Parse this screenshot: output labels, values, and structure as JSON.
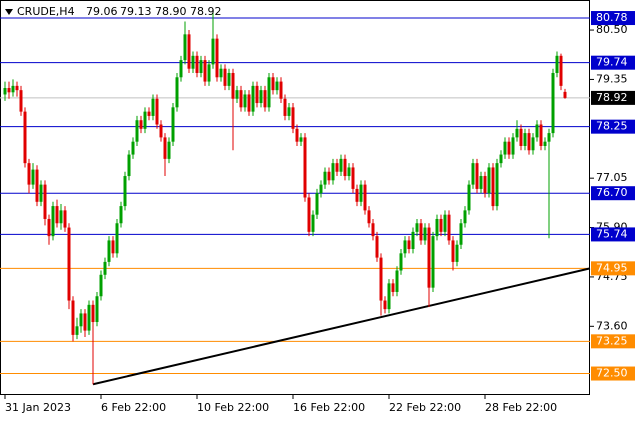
{
  "chart_data": {
    "type": "candlestick",
    "symbol": "CRUDE,H4",
    "quote": [
      "79.06",
      "79.13",
      "78.90",
      "78.92"
    ],
    "ylim": [
      72.0,
      81.2
    ],
    "yticks": [
      {
        "value": 80.5,
        "label": "80.50"
      },
      {
        "value": 79.35,
        "label": "79.35"
      },
      {
        "value": 77.05,
        "label": "77.05"
      },
      {
        "value": 75.9,
        "label": "75.90"
      },
      {
        "value": 74.75,
        "label": "74.75"
      },
      {
        "value": 73.6,
        "label": "73.60"
      }
    ],
    "up_color": "#00a000",
    "down_color": "#e00000",
    "levels": [
      {
        "value": 80.78,
        "label": "80.78",
        "color": "#0000cc"
      },
      {
        "value": 79.74,
        "label": "79.74",
        "color": "#0000cc"
      },
      {
        "value": 78.25,
        "label": "78.25",
        "color": "#0000cc"
      },
      {
        "value": 76.7,
        "label": "76.70",
        "color": "#0000cc"
      },
      {
        "value": 75.74,
        "label": "75.74",
        "color": "#0000cc"
      },
      {
        "value": 74.95,
        "label": "74.95",
        "color": "#ff8c00"
      },
      {
        "value": 73.25,
        "label": "73.25",
        "color": "#ff8c00"
      },
      {
        "value": 72.5,
        "label": "72.50",
        "color": "#ff8c00"
      }
    ],
    "price_line": {
      "value": 78.92,
      "label": "78.92"
    },
    "trendline": [
      72.25,
      74.95
    ],
    "categories": [
      "31 Jan 2023",
      null,
      null,
      null,
      null,
      null,
      null,
      null,
      null,
      null,
      null,
      null,
      null,
      null,
      null,
      null,
      null,
      null,
      null,
      null,
      null,
      null,
      null,
      null,
      "6 Feb 22:00",
      null,
      null,
      null,
      null,
      null,
      null,
      null,
      null,
      null,
      null,
      null,
      null,
      null,
      null,
      null,
      null,
      null,
      null,
      null,
      null,
      null,
      null,
      null,
      "10 Feb 22:00",
      null,
      null,
      null,
      null,
      null,
      null,
      null,
      null,
      null,
      null,
      null,
      null,
      null,
      null,
      null,
      null,
      null,
      null,
      null,
      null,
      null,
      null,
      null,
      "16 Feb 22:00",
      null,
      null,
      null,
      null,
      null,
      null,
      null,
      null,
      null,
      null,
      null,
      null,
      null,
      null,
      null,
      null,
      null,
      null,
      null,
      null,
      null,
      null,
      null,
      "22 Feb 22:00",
      null,
      null,
      null,
      null,
      null,
      null,
      null,
      null,
      null,
      null,
      null,
      null,
      null,
      null,
      null,
      null,
      null,
      null,
      null,
      null,
      null,
      null,
      null,
      "28 Feb 22:00",
      null,
      null,
      null,
      null,
      null,
      null,
      null,
      null,
      null,
      null,
      null,
      null,
      null,
      null,
      null,
      null,
      null,
      null,
      null,
      null
    ],
    "ohlc": [
      [
        79.0,
        79.3,
        78.85,
        79.15
      ],
      [
        79.15,
        79.3,
        78.9,
        79.05
      ],
      [
        79.05,
        79.35,
        78.95,
        79.2
      ],
      [
        79.2,
        79.3,
        78.95,
        79.1
      ],
      [
        79.1,
        79.2,
        78.5,
        78.6
      ],
      [
        78.6,
        78.7,
        77.3,
        77.4
      ],
      [
        77.4,
        77.5,
        76.7,
        76.9
      ],
      [
        76.9,
        77.4,
        76.8,
        77.25
      ],
      [
        77.25,
        77.35,
        76.4,
        76.5
      ],
      [
        76.5,
        77.0,
        76.4,
        76.9
      ],
      [
        76.9,
        77.0,
        75.95,
        76.1
      ],
      [
        76.1,
        76.2,
        75.5,
        75.7
      ],
      [
        75.7,
        76.5,
        75.6,
        76.4
      ],
      [
        76.4,
        76.55,
        75.9,
        76.0
      ],
      [
        76.0,
        76.45,
        75.85,
        76.3
      ],
      [
        76.3,
        76.4,
        75.8,
        75.9
      ],
      [
        75.9,
        76.0,
        74.0,
        74.2
      ],
      [
        74.2,
        74.3,
        73.25,
        73.4
      ],
      [
        73.4,
        73.8,
        73.3,
        73.6
      ],
      [
        73.6,
        74.0,
        73.45,
        73.9
      ],
      [
        73.9,
        74.0,
        73.35,
        73.5
      ],
      [
        73.5,
        74.2,
        73.4,
        74.1
      ],
      [
        74.1,
        74.2,
        72.25,
        73.7
      ],
      [
        73.7,
        74.4,
        73.6,
        74.3
      ],
      [
        74.3,
        74.9,
        74.2,
        74.8
      ],
      [
        74.8,
        75.2,
        74.7,
        75.1
      ],
      [
        75.1,
        75.7,
        75.0,
        75.6
      ],
      [
        75.6,
        75.7,
        75.2,
        75.3
      ],
      [
        75.3,
        76.1,
        75.2,
        76.0
      ],
      [
        76.0,
        76.5,
        75.9,
        76.4
      ],
      [
        76.4,
        77.2,
        76.3,
        77.1
      ],
      [
        77.1,
        77.7,
        77.0,
        77.6
      ],
      [
        77.6,
        78.0,
        77.5,
        77.9
      ],
      [
        77.9,
        78.5,
        77.8,
        78.4
      ],
      [
        78.4,
        78.5,
        78.1,
        78.2
      ],
      [
        78.2,
        78.7,
        78.1,
        78.6
      ],
      [
        78.6,
        78.7,
        78.4,
        78.5
      ],
      [
        78.5,
        79.0,
        78.4,
        78.9
      ],
      [
        78.9,
        79.0,
        78.2,
        78.3
      ],
      [
        78.3,
        78.4,
        77.9,
        78.0
      ],
      [
        78.0,
        78.1,
        77.1,
        77.5
      ],
      [
        77.5,
        78.0,
        77.4,
        77.9
      ],
      [
        77.9,
        78.8,
        77.8,
        78.7
      ],
      [
        78.7,
        79.5,
        78.6,
        79.4
      ],
      [
        79.4,
        79.9,
        79.3,
        79.8
      ],
      [
        79.8,
        80.7,
        79.7,
        80.4
      ],
      [
        80.4,
        80.5,
        79.5,
        79.6
      ],
      [
        79.6,
        80.0,
        79.5,
        79.9
      ],
      [
        79.9,
        80.0,
        79.4,
        79.5
      ],
      [
        79.5,
        79.9,
        79.4,
        79.8
      ],
      [
        79.8,
        79.9,
        79.2,
        79.3
      ],
      [
        79.3,
        79.8,
        79.2,
        79.7
      ],
      [
        79.7,
        80.95,
        79.6,
        80.3
      ],
      [
        80.3,
        80.4,
        79.3,
        79.4
      ],
      [
        79.4,
        79.7,
        79.3,
        79.6
      ],
      [
        79.6,
        79.7,
        79.1,
        79.2
      ],
      [
        79.2,
        79.6,
        79.1,
        79.5
      ],
      [
        79.5,
        79.6,
        77.7,
        78.9
      ],
      [
        78.9,
        79.2,
        78.8,
        79.1
      ],
      [
        79.1,
        79.2,
        78.6,
        78.7
      ],
      [
        78.7,
        79.1,
        78.6,
        79.0
      ],
      [
        79.0,
        79.1,
        78.5,
        78.6
      ],
      [
        78.6,
        79.3,
        78.5,
        79.2
      ],
      [
        79.2,
        79.3,
        78.7,
        78.8
      ],
      [
        78.8,
        79.2,
        78.7,
        79.1
      ],
      [
        79.1,
        79.2,
        78.6,
        78.7
      ],
      [
        78.7,
        79.5,
        78.6,
        79.4
      ],
      [
        79.4,
        79.5,
        79.0,
        79.1
      ],
      [
        79.1,
        79.4,
        79.0,
        79.3
      ],
      [
        79.3,
        79.4,
        78.8,
        78.9
      ],
      [
        78.9,
        79.0,
        78.4,
        78.5
      ],
      [
        78.5,
        78.8,
        78.4,
        78.7
      ],
      [
        78.7,
        78.8,
        78.1,
        78.2
      ],
      [
        78.2,
        78.3,
        77.8,
        77.9
      ],
      [
        77.9,
        78.1,
        77.8,
        78.0
      ],
      [
        78.0,
        78.1,
        76.5,
        76.6
      ],
      [
        76.6,
        76.7,
        75.7,
        75.8
      ],
      [
        75.8,
        76.3,
        75.7,
        76.2
      ],
      [
        76.2,
        76.8,
        76.1,
        76.7
      ],
      [
        76.7,
        77.0,
        76.6,
        76.9
      ],
      [
        76.9,
        77.3,
        76.8,
        77.2
      ],
      [
        77.2,
        77.3,
        76.9,
        77.0
      ],
      [
        77.0,
        77.5,
        76.9,
        77.4
      ],
      [
        77.4,
        77.5,
        77.1,
        77.2
      ],
      [
        77.2,
        77.6,
        77.1,
        77.5
      ],
      [
        77.5,
        77.6,
        77.0,
        77.1
      ],
      [
        77.1,
        77.4,
        77.0,
        77.3
      ],
      [
        77.3,
        77.4,
        76.7,
        76.8
      ],
      [
        76.8,
        76.9,
        76.4,
        76.5
      ],
      [
        76.5,
        77.0,
        76.4,
        76.9
      ],
      [
        76.9,
        77.0,
        76.2,
        76.3
      ],
      [
        76.3,
        76.4,
        75.9,
        76.0
      ],
      [
        76.0,
        76.1,
        75.6,
        75.7
      ],
      [
        75.7,
        75.8,
        75.1,
        75.2
      ],
      [
        75.2,
        75.3,
        73.85,
        74.2
      ],
      [
        74.2,
        74.3,
        73.9,
        74.0
      ],
      [
        74.0,
        74.7,
        73.9,
        74.6
      ],
      [
        74.6,
        74.7,
        74.3,
        74.4
      ],
      [
        74.4,
        75.0,
        74.3,
        74.9
      ],
      [
        74.9,
        75.4,
        74.8,
        75.3
      ],
      [
        75.3,
        75.7,
        75.2,
        75.6
      ],
      [
        75.6,
        75.7,
        75.3,
        75.4
      ],
      [
        75.4,
        75.9,
        75.3,
        75.8
      ],
      [
        75.8,
        76.1,
        75.7,
        76.0
      ],
      [
        76.0,
        76.1,
        75.5,
        75.6
      ],
      [
        75.6,
        76.0,
        75.5,
        75.9
      ],
      [
        75.9,
        76.0,
        74.05,
        74.5
      ],
      [
        74.5,
        75.8,
        74.4,
        75.7
      ],
      [
        75.7,
        76.2,
        75.6,
        76.1
      ],
      [
        76.1,
        76.2,
        75.7,
        75.8
      ],
      [
        75.8,
        76.3,
        75.7,
        76.2
      ],
      [
        76.2,
        76.3,
        75.5,
        75.6
      ],
      [
        75.6,
        75.7,
        74.9,
        75.1
      ],
      [
        75.1,
        75.6,
        75.0,
        75.5
      ],
      [
        75.5,
        76.1,
        75.4,
        76.0
      ],
      [
        76.0,
        76.4,
        75.9,
        76.3
      ],
      [
        76.3,
        77.0,
        76.2,
        76.9
      ],
      [
        76.9,
        77.5,
        76.8,
        77.4
      ],
      [
        77.4,
        77.5,
        76.7,
        76.8
      ],
      [
        76.8,
        77.2,
        76.7,
        77.1
      ],
      [
        77.1,
        77.2,
        76.6,
        76.7
      ],
      [
        76.7,
        77.4,
        76.6,
        77.3
      ],
      [
        77.3,
        77.4,
        76.3,
        76.4
      ],
      [
        76.4,
        77.5,
        76.3,
        77.4
      ],
      [
        77.4,
        77.7,
        77.3,
        77.6
      ],
      [
        77.6,
        78.0,
        77.5,
        77.9
      ],
      [
        77.9,
        78.0,
        77.5,
        77.6
      ],
      [
        77.6,
        78.1,
        77.5,
        78.0
      ],
      [
        78.0,
        78.4,
        77.9,
        78.2
      ],
      [
        78.2,
        78.3,
        77.7,
        77.8
      ],
      [
        77.8,
        78.2,
        77.7,
        78.1
      ],
      [
        78.1,
        78.2,
        77.6,
        77.7
      ],
      [
        77.7,
        78.1,
        77.6,
        78.0
      ],
      [
        78.0,
        78.4,
        77.9,
        78.3
      ],
      [
        78.3,
        78.4,
        77.7,
        77.8
      ],
      [
        77.8,
        78.0,
        77.7,
        77.9
      ],
      [
        77.9,
        78.2,
        75.65,
        78.1
      ],
      [
        78.1,
        79.6,
        78.0,
        79.5
      ],
      [
        79.5,
        80.0,
        79.4,
        79.9
      ],
      [
        79.9,
        79.95,
        79.1,
        79.2
      ],
      [
        79.06,
        79.13,
        78.9,
        78.92
      ]
    ]
  }
}
